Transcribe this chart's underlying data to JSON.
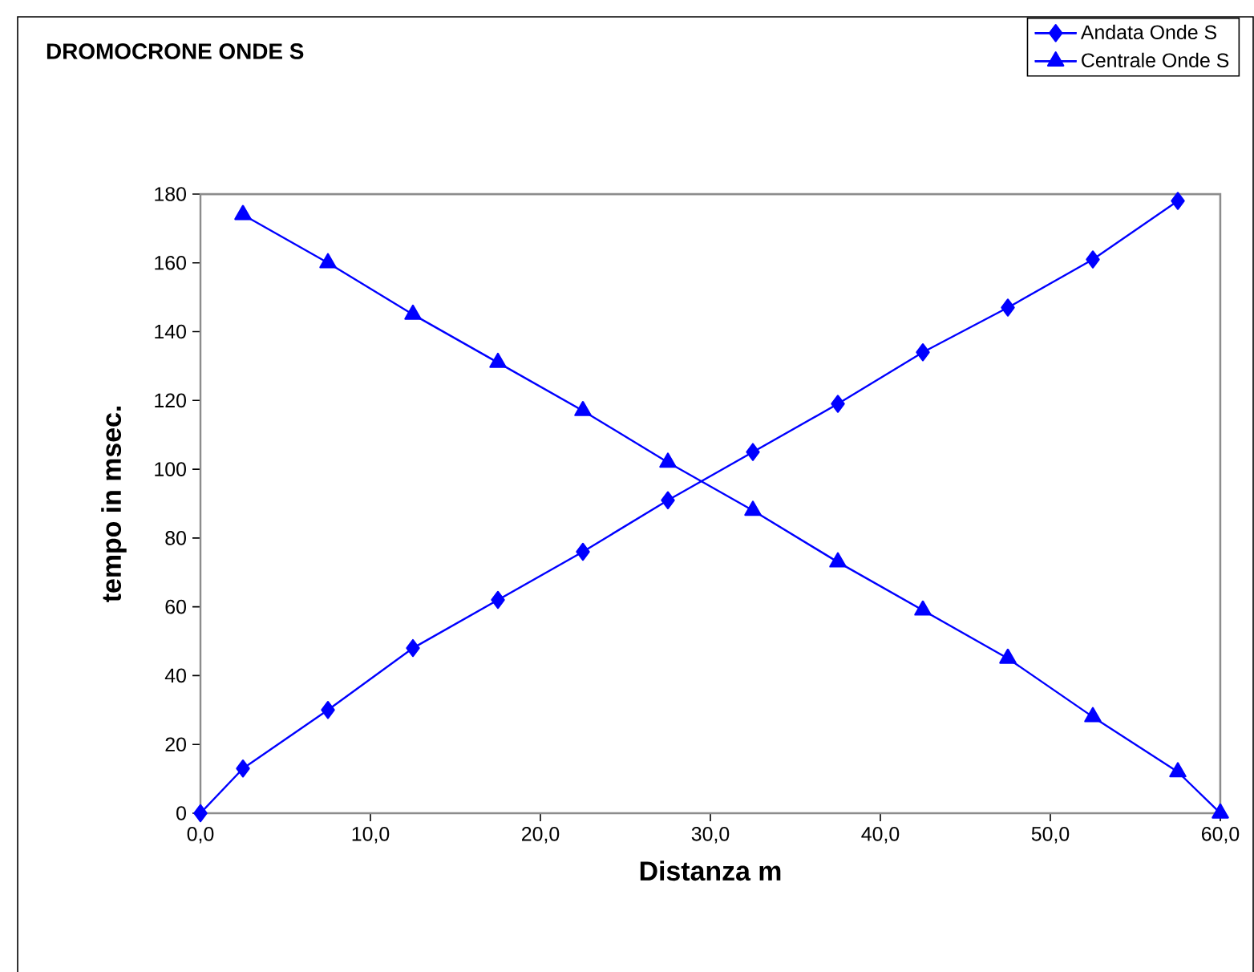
{
  "chart_data": {
    "type": "line",
    "title": "DROMOCRONE ONDE S",
    "xlabel": "Distanza m",
    "ylabel": "tempo in msec.",
    "series": [
      {
        "name": "Andata Onde S",
        "color": "#0000ff",
        "marker": "diamond",
        "x": [
          0,
          2.5,
          7.5,
          12.5,
          17.5,
          22.5,
          27.5,
          32.5,
          37.5,
          42.5,
          47.5,
          52.5,
          57.5
        ],
        "values": [
          0,
          13,
          30,
          48,
          62,
          76,
          91,
          105,
          119,
          134,
          147,
          161,
          178
        ]
      },
      {
        "name": "Centrale Onde S",
        "color": "#0000ff",
        "marker": "triangle",
        "x": [
          2.5,
          7.5,
          12.5,
          17.5,
          22.5,
          27.5,
          32.5,
          37.5,
          42.5,
          47.5,
          52.5,
          57.5,
          60
        ],
        "values": [
          174,
          160,
          145,
          131,
          117,
          102,
          88,
          73,
          59,
          45,
          28,
          12,
          0
        ]
      }
    ],
    "xlim": [
      0,
      60
    ],
    "ylim": [
      0,
      180
    ],
    "xticks": [
      {
        "value": 0,
        "label": "0,0"
      },
      {
        "value": 10,
        "label": "10,0"
      },
      {
        "value": 20,
        "label": "20,0"
      },
      {
        "value": 30,
        "label": "30,0"
      },
      {
        "value": 40,
        "label": "40,0"
      },
      {
        "value": 50,
        "label": "50,0"
      },
      {
        "value": 60,
        "label": "60,0"
      }
    ],
    "yticks": [
      0,
      20,
      40,
      60,
      80,
      100,
      120,
      140,
      160,
      180
    ],
    "legend": "top right",
    "grid": false,
    "line_style": "solid"
  }
}
